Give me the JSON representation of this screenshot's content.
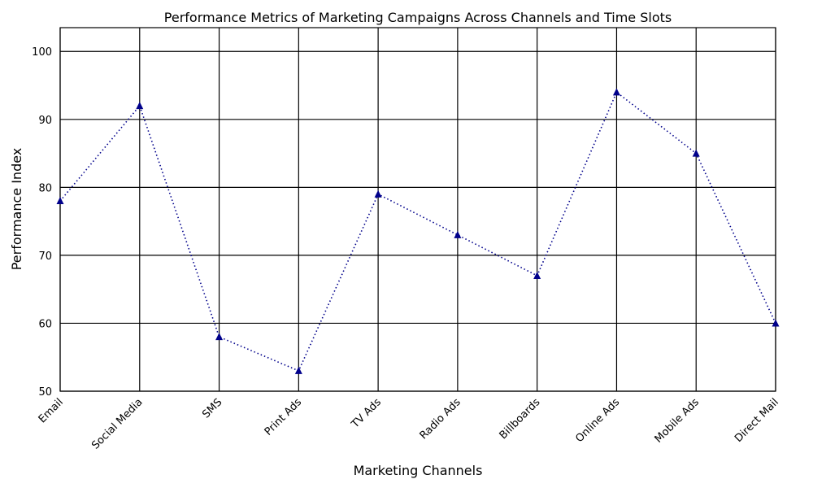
{
  "chart_data": {
    "type": "line",
    "title": "Performance Metrics of Marketing Campaigns Across Channels and Time Slots",
    "xlabel": "Marketing Channels",
    "ylabel": "Performance Index",
    "categories": [
      "Email",
      "Social Media",
      "SMS",
      "Print Ads",
      "TV Ads",
      "Radio Ads",
      "Billboards",
      "Online Ads",
      "Mobile Ads",
      "Direct Mail"
    ],
    "series": [
      {
        "values": [
          78,
          92,
          58,
          53,
          79,
          73,
          67,
          94,
          85,
          60
        ],
        "color": "#00008b",
        "marker": "triangle",
        "line_style": "dotted"
      }
    ],
    "ylim": [
      50,
      103.5
    ],
    "yticks": [
      50,
      60,
      70,
      80,
      90,
      100
    ],
    "grid": true,
    "legend": "none"
  }
}
